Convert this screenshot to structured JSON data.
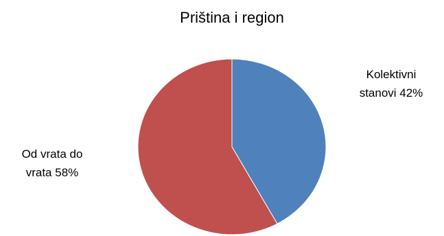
{
  "chart_data": {
    "type": "pie",
    "title": "Priština i region",
    "slices": [
      {
        "label_lines": [
          "Kolektivni",
          "stanovi   42%"
        ],
        "value": 42,
        "color": "#4F81BD"
      },
      {
        "label_lines": [
          "Od vrata do",
          "vrata 58%"
        ],
        "value": 58,
        "color": "#C0504D"
      }
    ],
    "start_angle": "12 o'clock",
    "direction": "clockwise",
    "legend": "none"
  }
}
